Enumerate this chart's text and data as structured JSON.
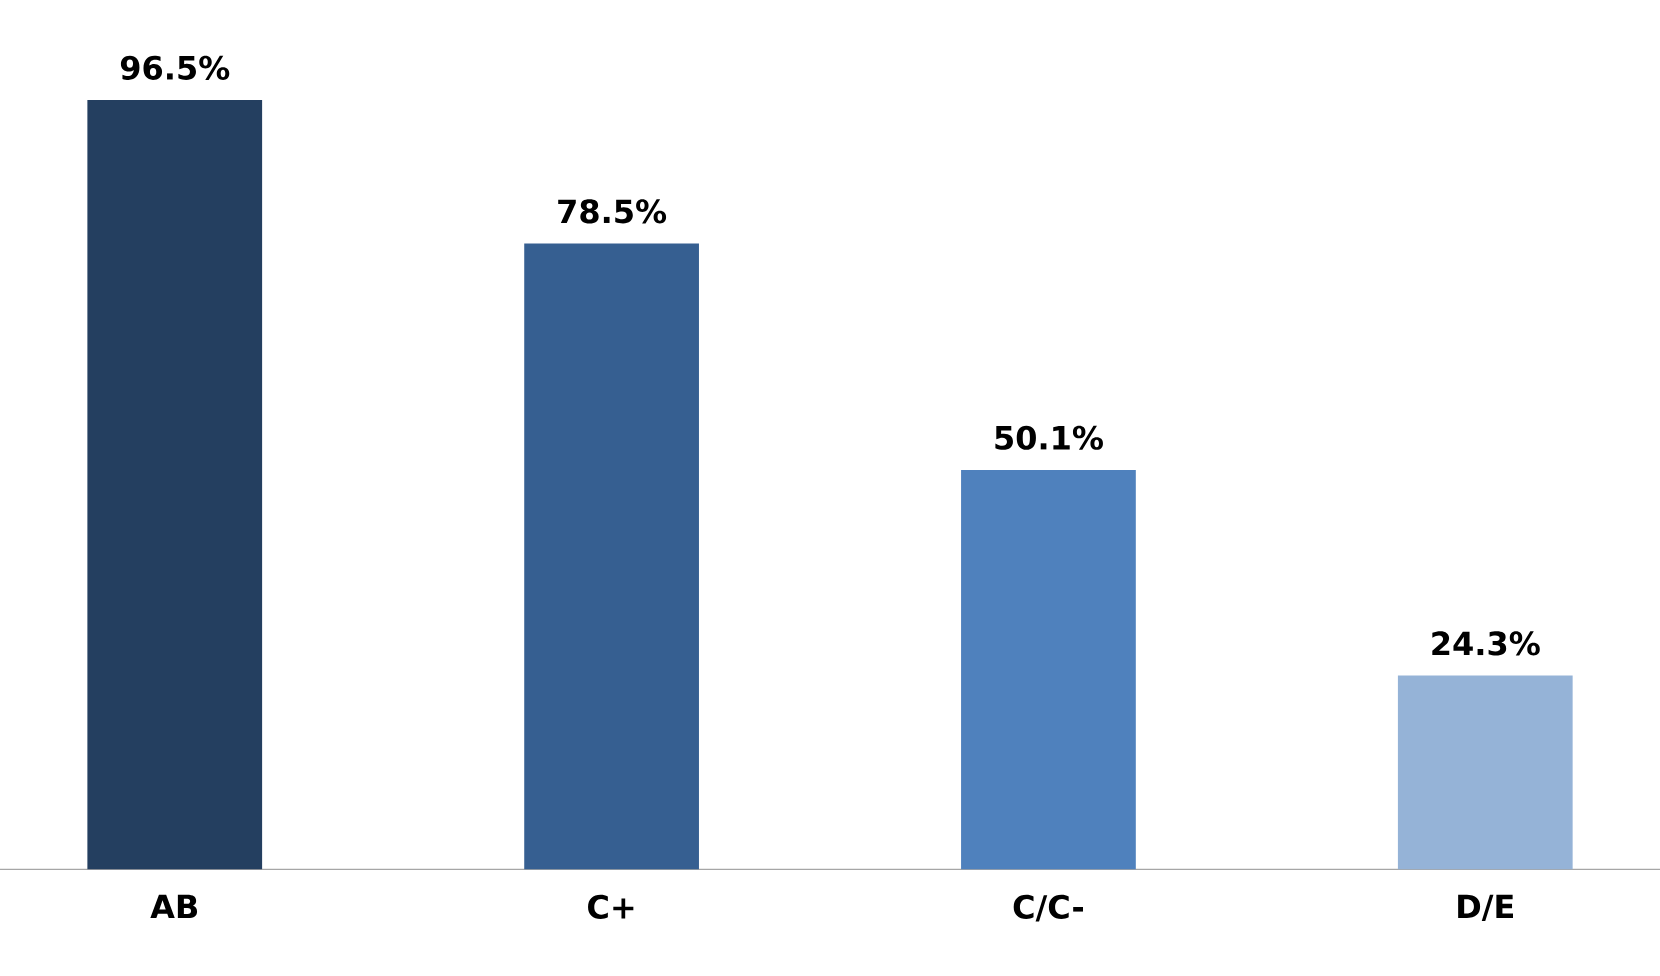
{
  "chart_data": {
    "type": "bar",
    "categories": [
      "AB",
      "C+",
      "C/C-",
      "D/E"
    ],
    "values": [
      96.5,
      78.5,
      50.1,
      24.3
    ],
    "value_labels": [
      "96.5%",
      "78.5%",
      "50.1%",
      "24.3%"
    ],
    "colors": [
      "#243f60",
      "#365f91",
      "#4f81bd",
      "#95b3d7"
    ]
  }
}
